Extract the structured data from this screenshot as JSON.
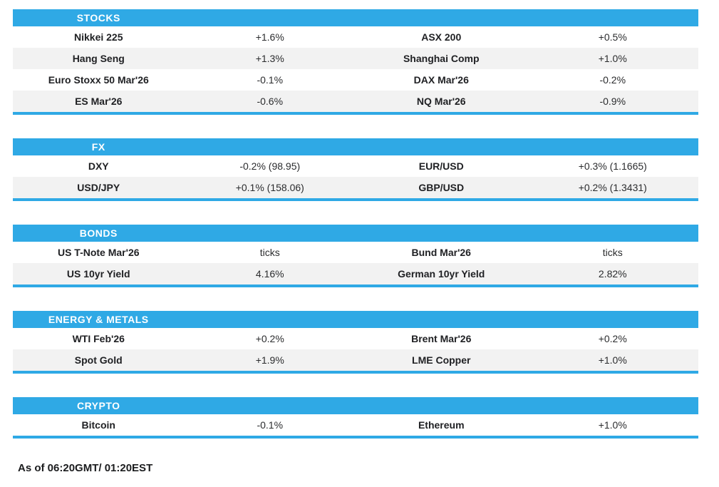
{
  "chart_data": {
    "type": "table",
    "columns": [
      "instrument",
      "change",
      "instrument",
      "change"
    ],
    "sections": [
      {
        "title": "STOCKS",
        "rows": [
          {
            "cells": [
              "Nikkei 225",
              "+1.6%",
              "ASX 200",
              "+0.5%"
            ]
          },
          {
            "cells": [
              "Hang Seng",
              "+1.3%",
              "Shanghai Comp",
              "+1.0%"
            ]
          },
          {
            "cells": [
              "Euro Stoxx 50 Mar'26",
              "-0.1%",
              "DAX Mar'26",
              "-0.2%"
            ]
          },
          {
            "cells": [
              "ES Mar'26",
              "-0.6%",
              "NQ Mar'26",
              "-0.9%"
            ]
          }
        ]
      },
      {
        "title": "FX",
        "rows": [
          {
            "cells": [
              "DXY",
              "-0.2% (98.95)",
              "EUR/USD",
              "+0.3% (1.1665)"
            ]
          },
          {
            "cells": [
              "USD/JPY",
              "+0.1% (158.06)",
              "GBP/USD",
              "+0.2% (1.3431)"
            ]
          }
        ]
      },
      {
        "title": "BONDS",
        "rows": [
          {
            "cells": [
              "US T-Note Mar'26",
              "ticks",
              "Bund Mar'26",
              "ticks"
            ]
          },
          {
            "cells": [
              "US 10yr Yield",
              "4.16%",
              "German 10yr Yield",
              "2.82%"
            ]
          }
        ]
      },
      {
        "title": "ENERGY & METALS",
        "rows": [
          {
            "cells": [
              "WTI Feb'26",
              "+0.2%",
              "Brent Mar'26",
              "+0.2%"
            ]
          },
          {
            "cells": [
              "Spot Gold",
              "+1.9%",
              "LME Copper",
              "+1.0%"
            ]
          }
        ]
      },
      {
        "title": "CRYPTO",
        "rows": [
          {
            "cells": [
              "Bitcoin",
              "-0.1%",
              "Ethereum",
              "+1.0%"
            ]
          }
        ]
      }
    ],
    "footer": "As of 06:20GMT/ 01:20EST",
    "layout": {
      "grid": false,
      "header_position": "first-column-centered",
      "colors": {
        "accent": "#2fa9e5",
        "alt_row": "#f2f2f2",
        "header_text": "#ffffff",
        "label_text": "#202124",
        "value_text": "#2b2c2e"
      }
    }
  }
}
